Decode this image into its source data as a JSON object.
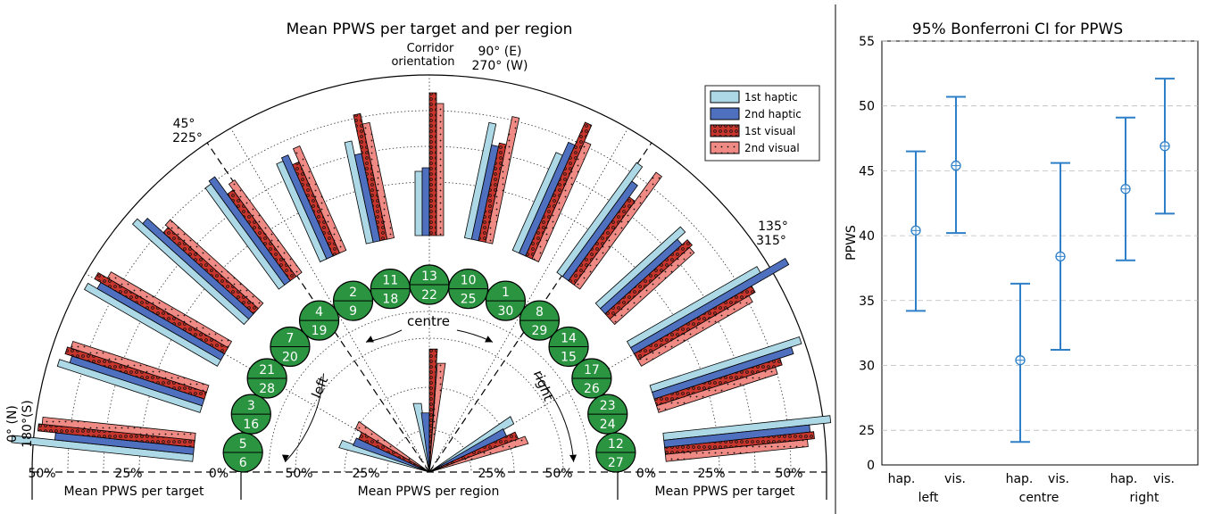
{
  "colors": {
    "hap1": "#add8e6",
    "hap2": "#4f6fbf",
    "vis1": "#c8352c",
    "vis2": "#f08a84",
    "badge": "#2a9440",
    "ci": "#2e7fc8"
  },
  "left_figure": {
    "title": "Mean PPWS per target and per region",
    "corridor_label_1": "Corridor",
    "corridor_label_2": "orientation",
    "angle_90": "90° (E)",
    "angle_270": "270° (W)",
    "angle_45": "45°",
    "angle_225": "225°",
    "angle_135": "135°",
    "angle_315": "315°",
    "angle_0": "0° (N)",
    "angle_180": "180°(S)",
    "region_labels": [
      "left",
      "centre",
      "right"
    ],
    "left_axis_ticks": [
      "50%",
      "25%",
      "0%"
    ],
    "centre_axis_ticks": [
      "50%",
      "25%",
      "25%",
      "50%"
    ],
    "right_axis_ticks": [
      "0%",
      "25%",
      "50%"
    ],
    "left_axis_title": "Mean PPWS per target",
    "centre_axis_title": "Mean PPWS per region",
    "right_axis_title": "Mean PPWS per target",
    "legend": [
      "1st haptic",
      "2nd haptic",
      "1st visual",
      "2nd visual"
    ]
  },
  "right_figure": {
    "title": "95% Bonferroni CI for PPWS",
    "ylabel": "PPWS",
    "yticks": [
      "55",
      "50",
      "45",
      "40",
      "35",
      "30",
      "25",
      "0"
    ],
    "xticks": [
      "hap.",
      "vis.",
      "hap.",
      "vis.",
      "hap.",
      "vis."
    ],
    "groups": [
      "left",
      "centre",
      "right"
    ]
  },
  "chart_data": [
    {
      "type": "bar",
      "title": "Mean PPWS per target and per region",
      "polar": true,
      "series": [
        {
          "name": "1st haptic"
        },
        {
          "name": "2nd haptic"
        },
        {
          "name": "1st visual"
        },
        {
          "name": "2nd visual"
        }
      ],
      "targets": [
        {
          "labels": [
            "5",
            "6"
          ],
          "values": [
            51,
            39,
            44,
            43
          ]
        },
        {
          "labels": [
            "3",
            "16"
          ],
          "values": [
            42,
            39,
            41,
            40
          ]
        },
        {
          "labels": [
            "21",
            "28"
          ],
          "values": [
            43,
            40,
            42,
            39
          ]
        },
        {
          "labels": [
            "7",
            "20"
          ],
          "values": [
            42,
            40,
            34,
            35
          ]
        },
        {
          "labels": [
            "4",
            "19"
          ],
          "values": [
            35,
            36,
            30,
            32
          ]
        },
        {
          "labels": [
            "2",
            "9"
          ],
          "values": [
            30,
            31,
            28,
            32
          ]
        },
        {
          "labels": [
            "11",
            "18"
          ],
          "values": [
            29,
            25,
            36,
            33
          ]
        },
        {
          "labels": [
            "13",
            "22"
          ],
          "values": [
            18,
            19,
            40,
            37
          ]
        },
        {
          "labels": [
            "10",
            "25"
          ],
          "values": [
            33,
            27,
            28,
            36
          ]
        },
        {
          "labels": [
            "1",
            "30"
          ],
          "values": [
            30,
            34,
            41,
            36
          ]
        },
        {
          "labels": [
            "8",
            "29"
          ],
          "values": [
            38,
            33,
            29,
            39
          ]
        },
        {
          "labels": [
            "14",
            "15"
          ],
          "values": [
            32,
            29,
            31,
            30
          ]
        },
        {
          "labels": [
            "17",
            "26"
          ],
          "values": [
            42,
            50,
            38,
            36
          ]
        },
        {
          "labels": [
            "23",
            "24"
          ],
          "values": [
            44,
            41,
            37,
            35
          ]
        },
        {
          "labels": [
            "12",
            "27"
          ],
          "values": [
            47,
            41,
            42,
            40
          ]
        }
      ],
      "regions": [
        {
          "name": "left",
          "values": [
            39,
            34,
            33,
            36
          ]
        },
        {
          "name": "centre",
          "values": [
            29,
            25,
            52,
            46
          ]
        },
        {
          "name": "right",
          "values": [
            41,
            36,
            40,
            43
          ]
        }
      ]
    },
    {
      "type": "scatter",
      "title": "95% Bonferroni CI for PPWS",
      "ylabel": "PPWS",
      "ylim": [
        25,
        55
      ],
      "groups": [
        {
          "name": "left",
          "items": [
            {
              "label": "hap.",
              "mean": 40.4,
              "low": 34.2,
              "high": 46.5
            },
            {
              "label": "vis.",
              "mean": 45.4,
              "low": 40.2,
              "high": 50.7
            }
          ]
        },
        {
          "name": "centre",
          "items": [
            {
              "label": "hap.",
              "mean": 30.4,
              "low": 24.1,
              "high": 36.3
            },
            {
              "label": "vis.",
              "mean": 38.4,
              "low": 31.2,
              "high": 45.6
            }
          ]
        },
        {
          "name": "right",
          "items": [
            {
              "label": "hap.",
              "mean": 43.6,
              "low": 38.1,
              "high": 49.1
            },
            {
              "label": "vis.",
              "mean": 46.9,
              "low": 41.7,
              "high": 52.1
            }
          ]
        }
      ]
    }
  ]
}
